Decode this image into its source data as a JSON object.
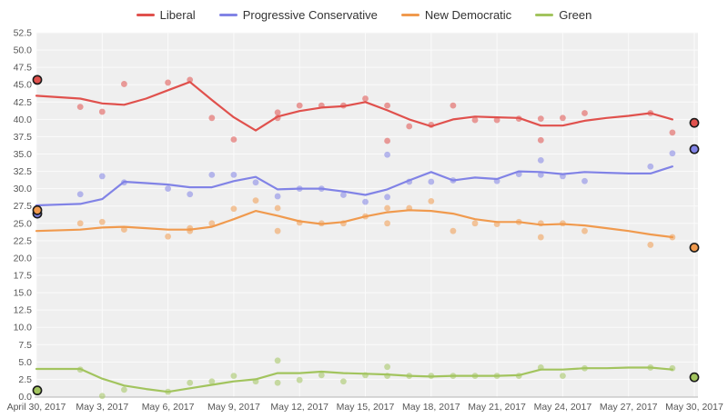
{
  "chart_data": {
    "type": "line+scatter",
    "description": "Opinion polling trend lines with individual poll dots for four parties, April 30 to May 30, 2017; outlined dots at edges mark previous and final election results",
    "legend_position": "top-center",
    "grid": true,
    "colors": {
      "plot_bg": "#efefef",
      "grid": "#fbfbfb",
      "axis_line": "#b5b5b5",
      "tick_label": "#565656",
      "edge_marker_stroke": "#1a1a1a"
    },
    "x_axis": {
      "unit": "date",
      "range_days": [
        0,
        30
      ],
      "tick_days": [
        0,
        3,
        6,
        9,
        12,
        15,
        18,
        21,
        24,
        27,
        30
      ],
      "tick_labels": [
        "April 30, 2017",
        "May 3, 2017",
        "May 6, 2017",
        "May 9, 2017",
        "May 12, 2017",
        "May 15, 2017",
        "May 18, 2017",
        "May 21, 2017",
        "May 24, 2017",
        "May 27, 2017",
        "May 30, 2017"
      ]
    },
    "y_axis": {
      "min": 0,
      "max": 52.5,
      "step": 2.5,
      "tick_labels_top_to_bottom": [
        "52.5",
        "50.0",
        "47.5",
        "45.0",
        "42.5",
        "40.0",
        "37.5",
        "35.0",
        "32.5",
        "30.0",
        "27.5",
        "25.0",
        "22.5",
        "20.0",
        "17.5",
        "15.0",
        "12.5",
        "10.0",
        "7.5",
        "5.0",
        "2.5",
        "0.0"
      ]
    },
    "series": [
      {
        "name": "Liberal",
        "key": "liberal",
        "color": "#e0514d",
        "start_marker": 45.7,
        "end_marker": 39.5,
        "trend": [
          [
            0,
            43.4
          ],
          [
            2,
            43.0
          ],
          [
            3,
            42.3
          ],
          [
            4,
            42.1
          ],
          [
            5,
            43.0
          ],
          [
            6,
            44.2
          ],
          [
            7,
            45.4
          ],
          [
            8,
            42.8
          ],
          [
            9,
            40.3
          ],
          [
            10,
            38.4
          ],
          [
            11,
            40.4
          ],
          [
            12,
            41.2
          ],
          [
            13,
            41.7
          ],
          [
            14,
            41.9
          ],
          [
            15,
            42.5
          ],
          [
            16,
            41.3
          ],
          [
            17,
            40.0
          ],
          [
            18,
            39.0
          ],
          [
            19,
            40.0
          ],
          [
            20,
            40.4
          ],
          [
            21,
            40.3
          ],
          [
            22,
            40.2
          ],
          [
            23,
            39.1
          ],
          [
            24,
            39.1
          ],
          [
            25,
            39.8
          ],
          [
            26,
            40.2
          ],
          [
            27,
            40.5
          ],
          [
            28,
            40.9
          ],
          [
            29,
            40.0
          ]
        ],
        "polls": [
          [
            2,
            41.8
          ],
          [
            3,
            41.1
          ],
          [
            4,
            45.1
          ],
          [
            6,
            45.3
          ],
          [
            7,
            45.7
          ],
          [
            8,
            40.2
          ],
          [
            9,
            37.1
          ],
          [
            11,
            41.0
          ],
          [
            11,
            40.2
          ],
          [
            12,
            42.0
          ],
          [
            13,
            42.0
          ],
          [
            14,
            42.0
          ],
          [
            15,
            43.0
          ],
          [
            16,
            42.0
          ],
          [
            16,
            36.9
          ],
          [
            17,
            39.0
          ],
          [
            18,
            39.2
          ],
          [
            19,
            42.0
          ],
          [
            20,
            39.9
          ],
          [
            21,
            39.9
          ],
          [
            22,
            40.1
          ],
          [
            23,
            40.1
          ],
          [
            23,
            37.0
          ],
          [
            24,
            40.2
          ],
          [
            25,
            40.9
          ],
          [
            28,
            40.9
          ],
          [
            29,
            38.1
          ]
        ]
      },
      {
        "name": "Progressive Conservative",
        "key": "progressive-conservative",
        "color": "#8183e6",
        "start_marker": 26.4,
        "end_marker": 35.7,
        "trend": [
          [
            0,
            27.6
          ],
          [
            2,
            27.8
          ],
          [
            3,
            28.5
          ],
          [
            4,
            31.0
          ],
          [
            5,
            30.8
          ],
          [
            6,
            30.6
          ],
          [
            7,
            30.2
          ],
          [
            8,
            30.2
          ],
          [
            9,
            31.1
          ],
          [
            10,
            31.7
          ],
          [
            11,
            29.9
          ],
          [
            12,
            30.0
          ],
          [
            13,
            30.0
          ],
          [
            14,
            29.6
          ],
          [
            15,
            29.1
          ],
          [
            16,
            29.9
          ],
          [
            17,
            31.2
          ],
          [
            18,
            32.4
          ],
          [
            19,
            31.2
          ],
          [
            20,
            31.6
          ],
          [
            21,
            31.4
          ],
          [
            22,
            32.5
          ],
          [
            23,
            32.4
          ],
          [
            24,
            32.1
          ],
          [
            25,
            32.4
          ],
          [
            26,
            32.3
          ],
          [
            27,
            32.2
          ],
          [
            28,
            32.2
          ],
          [
            29,
            33.2
          ]
        ],
        "polls": [
          [
            2,
            29.2
          ],
          [
            3,
            31.8
          ],
          [
            4,
            30.9
          ],
          [
            6,
            30.0
          ],
          [
            7,
            29.2
          ],
          [
            8,
            32.0
          ],
          [
            9,
            32.0
          ],
          [
            10,
            30.9
          ],
          [
            11,
            28.9
          ],
          [
            12,
            30.0
          ],
          [
            13,
            30.0
          ],
          [
            14,
            29.1
          ],
          [
            15,
            28.1
          ],
          [
            16,
            34.9
          ],
          [
            16,
            28.8
          ],
          [
            17,
            31.0
          ],
          [
            18,
            31.0
          ],
          [
            19,
            31.2
          ],
          [
            21,
            31.1
          ],
          [
            22,
            32.1
          ],
          [
            23,
            34.1
          ],
          [
            23,
            32.0
          ],
          [
            24,
            31.8
          ],
          [
            25,
            31.1
          ],
          [
            28,
            33.2
          ],
          [
            29,
            35.1
          ]
        ]
      },
      {
        "name": "New Democratic",
        "key": "new-democratic",
        "color": "#f09a4e",
        "start_marker": 26.9,
        "end_marker": 21.5,
        "trend": [
          [
            0,
            23.9
          ],
          [
            2,
            24.1
          ],
          [
            3,
            24.4
          ],
          [
            4,
            24.5
          ],
          [
            5,
            24.3
          ],
          [
            6,
            24.1
          ],
          [
            7,
            24.1
          ],
          [
            8,
            24.5
          ],
          [
            9,
            25.6
          ],
          [
            10,
            26.8
          ],
          [
            11,
            26.1
          ],
          [
            12,
            25.3
          ],
          [
            13,
            24.9
          ],
          [
            14,
            25.2
          ],
          [
            15,
            26.0
          ],
          [
            16,
            26.6
          ],
          [
            17,
            26.9
          ],
          [
            18,
            26.8
          ],
          [
            19,
            26.4
          ],
          [
            20,
            25.6
          ],
          [
            21,
            25.2
          ],
          [
            22,
            25.2
          ],
          [
            23,
            24.8
          ],
          [
            24,
            24.9
          ],
          [
            25,
            24.7
          ],
          [
            26,
            24.3
          ],
          [
            27,
            23.9
          ],
          [
            28,
            23.4
          ],
          [
            29,
            23.0
          ]
        ],
        "polls": [
          [
            2,
            25.0
          ],
          [
            3,
            25.2
          ],
          [
            4,
            24.1
          ],
          [
            6,
            23.1
          ],
          [
            7,
            23.9
          ],
          [
            7,
            24.3
          ],
          [
            8,
            25.0
          ],
          [
            9,
            27.1
          ],
          [
            10,
            28.3
          ],
          [
            11,
            27.2
          ],
          [
            11,
            23.9
          ],
          [
            12,
            25.1
          ],
          [
            13,
            25.0
          ],
          [
            14,
            25.0
          ],
          [
            15,
            26.0
          ],
          [
            16,
            27.2
          ],
          [
            16,
            25.0
          ],
          [
            17,
            27.2
          ],
          [
            18,
            28.2
          ],
          [
            19,
            23.9
          ],
          [
            20,
            25.0
          ],
          [
            21,
            24.9
          ],
          [
            22,
            25.2
          ],
          [
            23,
            25.0
          ],
          [
            23,
            23.0
          ],
          [
            24,
            25.0
          ],
          [
            25,
            23.9
          ],
          [
            28,
            21.9
          ],
          [
            29,
            23.0
          ]
        ]
      },
      {
        "name": "Green",
        "key": "green",
        "color": "#a2c45e",
        "start_marker": 0.9,
        "end_marker": 2.8,
        "trend": [
          [
            0,
            4.0
          ],
          [
            2,
            4.0
          ],
          [
            3,
            2.6
          ],
          [
            4,
            1.6
          ],
          [
            5,
            1.1
          ],
          [
            6,
            0.7
          ],
          [
            7,
            1.2
          ],
          [
            8,
            1.7
          ],
          [
            9,
            2.2
          ],
          [
            10,
            2.5
          ],
          [
            11,
            3.4
          ],
          [
            12,
            3.4
          ],
          [
            13,
            3.6
          ],
          [
            14,
            3.4
          ],
          [
            15,
            3.3
          ],
          [
            16,
            3.2
          ],
          [
            17,
            3.0
          ],
          [
            18,
            2.9
          ],
          [
            19,
            3.0
          ],
          [
            20,
            3.0
          ],
          [
            21,
            3.0
          ],
          [
            22,
            3.1
          ],
          [
            23,
            3.9
          ],
          [
            24,
            3.9
          ],
          [
            25,
            4.1
          ],
          [
            26,
            4.1
          ],
          [
            27,
            4.2
          ],
          [
            28,
            4.2
          ],
          [
            29,
            3.9
          ]
        ],
        "polls": [
          [
            2,
            3.9
          ],
          [
            3,
            0.1
          ],
          [
            4,
            1.0
          ],
          [
            6,
            0.7
          ],
          [
            7,
            2.0
          ],
          [
            8,
            2.2
          ],
          [
            9,
            3.0
          ],
          [
            10,
            2.2
          ],
          [
            11,
            5.2
          ],
          [
            11,
            2.0
          ],
          [
            12,
            2.4
          ],
          [
            13,
            3.1
          ],
          [
            14,
            2.2
          ],
          [
            15,
            3.1
          ],
          [
            16,
            4.3
          ],
          [
            16,
            3.0
          ],
          [
            17,
            3.0
          ],
          [
            18,
            3.0
          ],
          [
            19,
            3.0
          ],
          [
            20,
            3.0
          ],
          [
            21,
            3.0
          ],
          [
            22,
            3.0
          ],
          [
            23,
            4.2
          ],
          [
            24,
            3.0
          ],
          [
            25,
            4.1
          ],
          [
            28,
            4.2
          ],
          [
            29,
            4.1
          ]
        ]
      }
    ]
  }
}
